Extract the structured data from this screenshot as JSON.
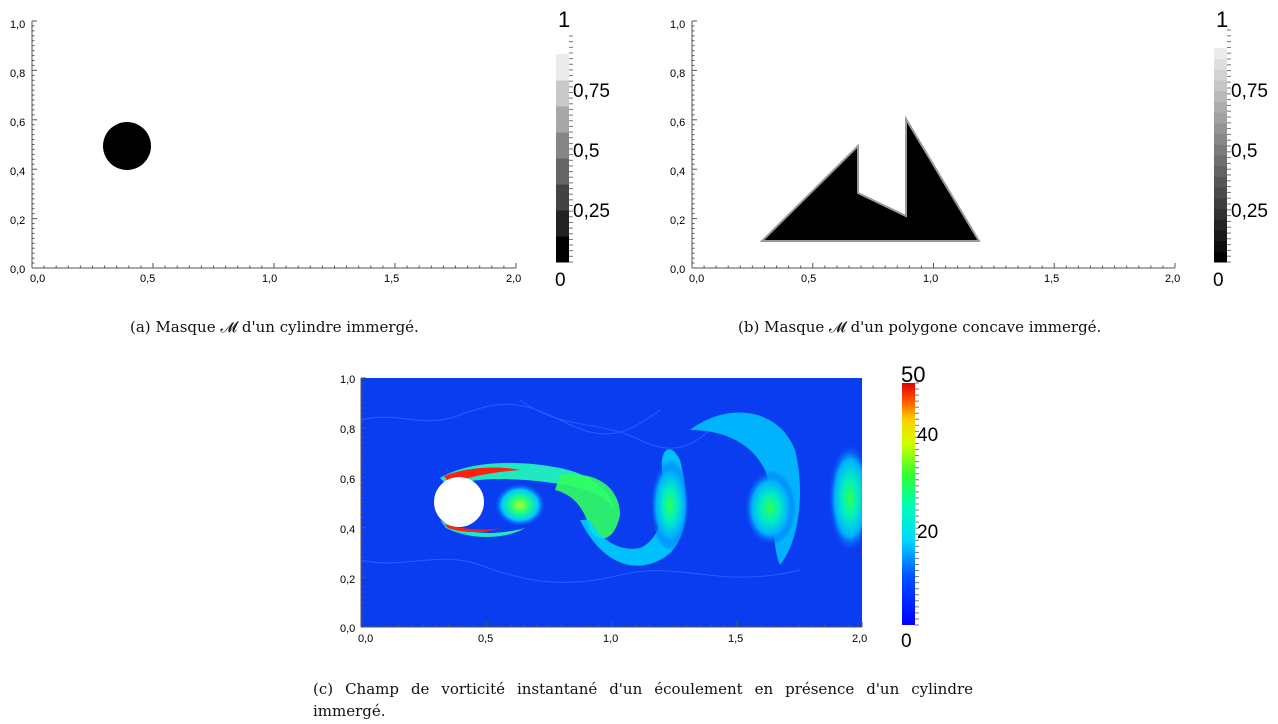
{
  "figures": [
    {
      "id": "a",
      "caption_label": "(a)",
      "caption_text": "Masque 𝓜 d'un cylindre immergé.",
      "chart_data": {
        "type": "heatmap",
        "x_ticks": [
          "0,0",
          "0,5",
          "1,0",
          "1,5",
          "2,0"
        ],
        "y_ticks": [
          "0,0",
          "0,2",
          "0,4",
          "0,6",
          "0,8",
          "1,0"
        ],
        "xlim": [
          0,
          2
        ],
        "ylim": [
          0,
          1
        ],
        "shape": {
          "kind": "circle",
          "center": [
            0.4,
            0.5
          ],
          "radius": 0.1,
          "value": 0
        },
        "background_value": 1,
        "colorbar": {
          "colormap": "grayscale",
          "range": [
            0,
            1
          ],
          "tick_labels": [
            "0",
            "0,25",
            "0,5",
            "0,75"
          ],
          "top_label": "1"
        }
      }
    },
    {
      "id": "b",
      "caption_label": "(b)",
      "caption_text": "Masque 𝓜 d'un polygone concave immergé.",
      "chart_data": {
        "type": "heatmap",
        "x_ticks": [
          "0,0",
          "0,5",
          "1,0",
          "1,5",
          "2,0"
        ],
        "y_ticks": [
          "0,0",
          "0,2",
          "0,4",
          "0,6",
          "0,8",
          "1,0"
        ],
        "xlim": [
          0,
          2
        ],
        "ylim": [
          0,
          1
        ],
        "shape": {
          "kind": "polygon",
          "vertices": [
            [
              0.3,
              0.1
            ],
            [
              0.69,
              0.5
            ],
            [
              0.69,
              0.3
            ],
            [
              0.89,
              0.2
            ],
            [
              0.89,
              0.61
            ],
            [
              1.19,
              0.1
            ]
          ],
          "value": 0
        },
        "background_value": 1,
        "colorbar": {
          "colormap": "grayscale",
          "range": [
            0,
            1
          ],
          "tick_labels": [
            "0",
            "0,25",
            "0,5",
            "0,75"
          ],
          "top_label": "1"
        }
      }
    },
    {
      "id": "c",
      "caption_label": "(c)",
      "caption_text": "Champ de vorticité instantané d'un écoulement en présence d'un cylindre immergé.",
      "chart_data": {
        "type": "heatmap",
        "x_ticks": [
          "0,0",
          "0,5",
          "1,0",
          "1,5",
          "2,0"
        ],
        "y_ticks": [
          "0,0",
          "0,2",
          "0,4",
          "0,6",
          "0,8",
          "1,0"
        ],
        "xlim": [
          0,
          2
        ],
        "ylim": [
          0,
          1
        ],
        "cylinder": {
          "center": [
            0.4,
            0.5
          ],
          "radius": 0.1
        },
        "colorbar": {
          "colormap": "jet",
          "range": [
            0,
            50
          ],
          "tick_labels": [
            "0",
            "20",
            "40",
            "50"
          ]
        }
      }
    }
  ],
  "colors": {
    "background": "#ffffff",
    "mask_fill": "#000000",
    "polygon_outline": "#9a9a9a",
    "field_low": "#0a3cf0"
  }
}
